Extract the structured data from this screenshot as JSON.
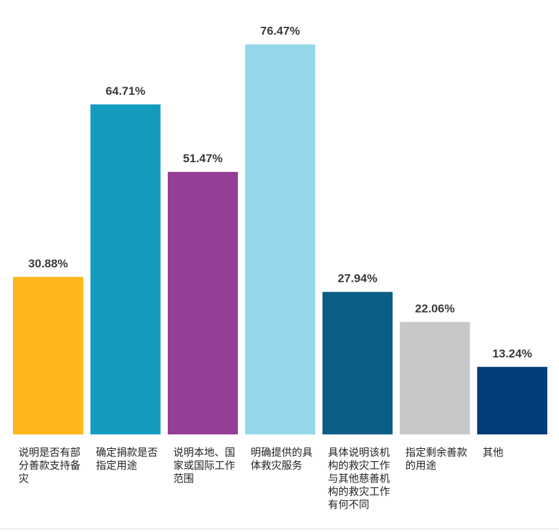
{
  "chart_data": {
    "type": "bar",
    "title": "",
    "xlabel": "",
    "ylabel": "",
    "ylim": [
      0,
      80
    ],
    "grid": false,
    "legend": "none",
    "categories": [
      "说明是否有部分善款支持备灾",
      "确定捐款是否指定用途",
      "说明本地、国家或国际工作范围",
      "明确提供的具体救灾服务",
      "具体说明该机构的救灾工作与其他慈善机构的救灾工作有何不同",
      "指定剩余善款的用途",
      "其他"
    ],
    "values": [
      30.88,
      64.71,
      51.47,
      76.47,
      27.94,
      22.06,
      13.24
    ],
    "value_labels": [
      "30.88%",
      "64.71%",
      "51.47%",
      "76.47%",
      "27.94%",
      "22.06%",
      "13.24%"
    ],
    "colors": [
      "#fdb71a",
      "#149cc0",
      "#963d97",
      "#94d7ea",
      "#0b5e86",
      "#c7c8ca",
      "#003d79"
    ]
  }
}
